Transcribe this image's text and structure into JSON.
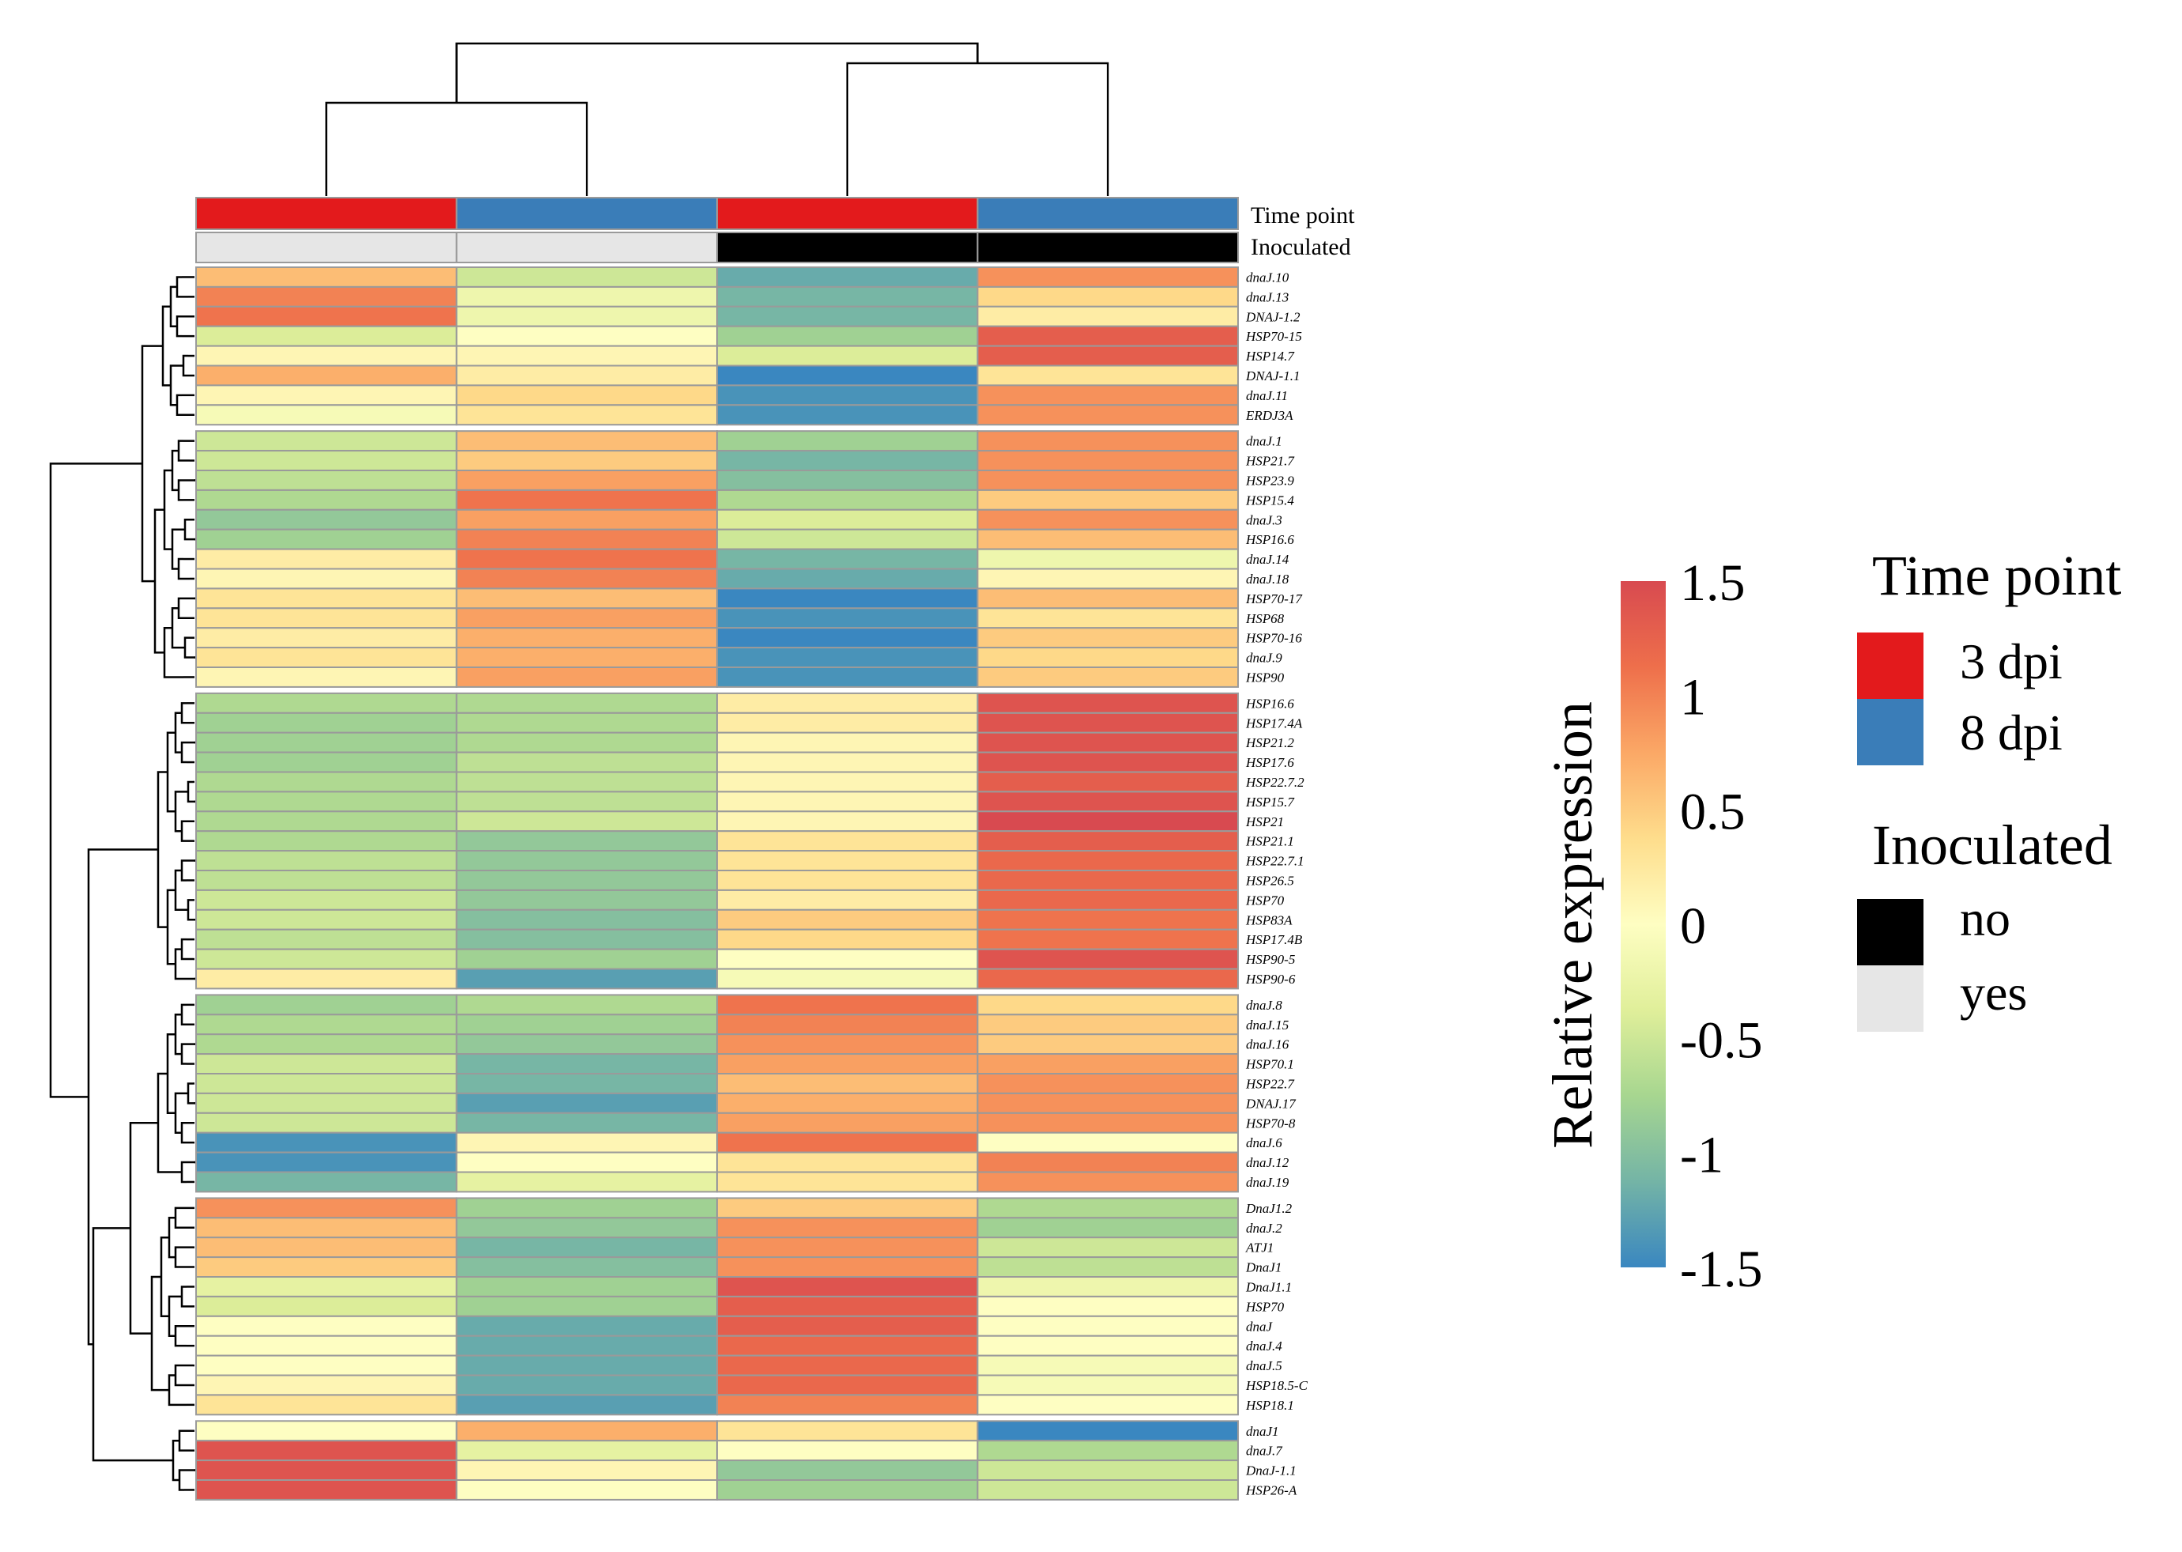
{
  "chart_data": {
    "type": "heatmap",
    "title": "",
    "colorbar": {
      "label": "Relative expression",
      "ticks": [
        "1.5",
        "1",
        "0.5",
        "0",
        "-0.5",
        "-1",
        "-1.5"
      ],
      "tick_values": [
        1.5,
        1,
        0.5,
        0,
        -0.5,
        -1,
        -1.5
      ],
      "range": [
        -1.5,
        1.5
      ]
    },
    "colormap": [
      "#3a87c0",
      "#74b4a6",
      "#a7d690",
      "#e0ef9a",
      "#fefec2",
      "#fedd8c",
      "#fba866",
      "#ee6f4b",
      "#d84a50"
    ],
    "columns": [
      {
        "time_point": "3 dpi",
        "inoculated": "yes"
      },
      {
        "time_point": "8 dpi",
        "inoculated": "yes"
      },
      {
        "time_point": "3 dpi",
        "inoculated": "no"
      },
      {
        "time_point": "8 dpi",
        "inoculated": "no"
      }
    ],
    "annotation_rows": [
      "Time point",
      "Inoculated"
    ],
    "legend": {
      "time_point": {
        "title": "Time point",
        "items": [
          {
            "label": "3 dpi",
            "color": "#e31a1c"
          },
          {
            "label": "8 dpi",
            "color": "#3a7db8"
          }
        ]
      },
      "inoculated": {
        "title": "Inoculated",
        "items": [
          {
            "label": "no",
            "color": "#000000"
          },
          {
            "label": "yes",
            "color": "#e6e6e6"
          }
        ]
      }
    },
    "row_groups": [
      [
        {
          "gene": "dnaJ.10",
          "values": [
            0.6,
            -0.5,
            -1.2,
            0.9
          ]
        },
        {
          "gene": "dnaJ.13",
          "values": [
            1.0,
            -0.2,
            -1.1,
            0.4
          ]
        },
        {
          "gene": "DNAJ-1.2",
          "values": [
            1.1,
            -0.2,
            -1.1,
            0.2
          ]
        },
        {
          "gene": "HSP70-15",
          "values": [
            -0.4,
            0.0,
            -0.8,
            1.3
          ]
        },
        {
          "gene": "HSP14.7",
          "values": [
            0.1,
            0.1,
            -0.4,
            1.3
          ]
        },
        {
          "gene": "DNAJ-1.1",
          "values": [
            0.7,
            0.2,
            -1.5,
            0.3
          ]
        },
        {
          "gene": "dnaJ.11",
          "values": [
            0.1,
            0.4,
            -1.4,
            0.9
          ]
        },
        {
          "gene": "ERDJ3A",
          "values": [
            -0.1,
            0.3,
            -1.4,
            0.9
          ]
        }
      ],
      [
        {
          "gene": "dnaJ.1",
          "values": [
            -0.5,
            0.6,
            -0.8,
            0.9
          ]
        },
        {
          "gene": "HSP21.7",
          "values": [
            -0.5,
            0.5,
            -1.1,
            0.9
          ]
        },
        {
          "gene": "HSP23.9",
          "values": [
            -0.6,
            0.8,
            -1.0,
            0.9
          ]
        },
        {
          "gene": "HSP15.4",
          "values": [
            -0.7,
            1.1,
            -0.7,
            0.5
          ]
        },
        {
          "gene": "dnaJ.3",
          "values": [
            -0.9,
            0.8,
            -0.4,
            0.9
          ]
        },
        {
          "gene": "HSP16.6",
          "values": [
            -0.8,
            1.0,
            -0.5,
            0.6
          ]
        },
        {
          "gene": "dnaJ.14",
          "values": [
            0.2,
            1.1,
            -1.1,
            -0.2
          ]
        },
        {
          "gene": "dnaJ.18",
          "values": [
            0.1,
            1.0,
            -1.2,
            0.1
          ]
        },
        {
          "gene": "HSP70-17",
          "values": [
            0.3,
            0.6,
            -1.5,
            0.6
          ]
        },
        {
          "gene": "HSP68",
          "values": [
            0.3,
            0.8,
            -1.4,
            0.3
          ]
        },
        {
          "gene": "HSP70-16",
          "values": [
            0.2,
            0.7,
            -1.5,
            0.5
          ]
        },
        {
          "gene": "dnaJ.9",
          "values": [
            0.3,
            0.7,
            -1.4,
            0.4
          ]
        },
        {
          "gene": "HSP90",
          "values": [
            0.1,
            0.8,
            -1.4,
            0.5
          ]
        }
      ],
      [
        {
          "gene": "HSP16.6",
          "values": [
            -0.7,
            -0.7,
            0.2,
            1.4
          ]
        },
        {
          "gene": "HSP17.4A",
          "values": [
            -0.8,
            -0.7,
            0.2,
            1.4
          ]
        },
        {
          "gene": "HSP21.2",
          "values": [
            -0.8,
            -0.7,
            0.1,
            1.4
          ]
        },
        {
          "gene": "HSP17.6",
          "values": [
            -0.8,
            -0.6,
            0.1,
            1.4
          ]
        },
        {
          "gene": "HSP22.7.2",
          "values": [
            -0.7,
            -0.6,
            0.1,
            1.3
          ]
        },
        {
          "gene": "HSP15.7",
          "values": [
            -0.7,
            -0.6,
            0.1,
            1.4
          ]
        },
        {
          "gene": "HSP21",
          "values": [
            -0.7,
            -0.5,
            0.1,
            1.5
          ]
        },
        {
          "gene": "HSP21.1",
          "values": [
            -0.7,
            -0.9,
            0.3,
            1.3
          ]
        },
        {
          "gene": "HSP22.7.1",
          "values": [
            -0.6,
            -0.9,
            0.3,
            1.2
          ]
        },
        {
          "gene": "HSP26.5",
          "values": [
            -0.6,
            -0.9,
            0.3,
            1.2
          ]
        },
        {
          "gene": "HSP70",
          "values": [
            -0.5,
            -0.9,
            0.2,
            1.2
          ]
        },
        {
          "gene": "HSP83A",
          "values": [
            -0.5,
            -1.0,
            0.5,
            1.1
          ]
        },
        {
          "gene": "HSP17.4B",
          "values": [
            -0.6,
            -1.0,
            0.4,
            1.1
          ]
        },
        {
          "gene": "HSP90-5",
          "values": [
            -0.5,
            -0.8,
            0.0,
            1.4
          ]
        },
        {
          "gene": "HSP90-6",
          "values": [
            0.2,
            -1.3,
            -0.1,
            1.2
          ]
        }
      ],
      [
        {
          "gene": "dnaJ.8",
          "values": [
            -0.8,
            -0.7,
            1.1,
            0.4
          ]
        },
        {
          "gene": "dnaJ.15",
          "values": [
            -0.7,
            -0.8,
            1.0,
            0.5
          ]
        },
        {
          "gene": "dnaJ.16",
          "values": [
            -0.7,
            -0.9,
            0.9,
            0.5
          ]
        },
        {
          "gene": "HSP70.1",
          "values": [
            -0.5,
            -1.1,
            0.8,
            0.8
          ]
        },
        {
          "gene": "HSP22.7",
          "values": [
            -0.5,
            -1.1,
            0.6,
            0.9
          ]
        },
        {
          "gene": "DNAJ.17",
          "values": [
            -0.5,
            -1.3,
            0.7,
            0.9
          ]
        },
        {
          "gene": "HSP70-8",
          "values": [
            -0.5,
            -1.1,
            0.8,
            0.9
          ]
        },
        {
          "gene": "dnaJ.6",
          "values": [
            -1.4,
            0.1,
            1.1,
            0.0
          ]
        },
        {
          "gene": "dnaJ.12",
          "values": [
            -1.4,
            0.0,
            0.3,
            1.0
          ]
        },
        {
          "gene": "dnaJ.19",
          "values": [
            -1.1,
            -0.3,
            0.3,
            0.9
          ]
        }
      ],
      [
        {
          "gene": "DnaJ1.2",
          "values": [
            0.9,
            -0.8,
            0.5,
            -0.7
          ]
        },
        {
          "gene": "dnaJ.2",
          "values": [
            0.6,
            -0.9,
            0.9,
            -0.8
          ]
        },
        {
          "gene": "ATJ1",
          "values": [
            0.6,
            -1.1,
            0.9,
            -0.5
          ]
        },
        {
          "gene": "DnaJ1",
          "values": [
            0.5,
            -1.0,
            0.9,
            -0.6
          ]
        },
        {
          "gene": "DnaJ1.1",
          "values": [
            -0.3,
            -0.8,
            1.4,
            -0.2
          ]
        },
        {
          "gene": "HSP70",
          "values": [
            -0.4,
            -0.8,
            1.3,
            0.0
          ]
        },
        {
          "gene": "dnaJ",
          "values": [
            0.0,
            -1.2,
            1.3,
            0.0
          ]
        },
        {
          "gene": "dnaJ.4",
          "values": [
            0.0,
            -1.2,
            1.2,
            0.0
          ]
        },
        {
          "gene": "dnaJ.5",
          "values": [
            0.0,
            -1.2,
            1.2,
            -0.1
          ]
        },
        {
          "gene": "HSP18.5-C",
          "values": [
            0.1,
            -1.2,
            1.2,
            -0.1
          ]
        },
        {
          "gene": "HSP18.1",
          "values": [
            0.3,
            -1.3,
            1.0,
            0.0
          ]
        }
      ],
      [
        {
          "gene": "dnaJ1",
          "values": [
            0.0,
            0.7,
            0.3,
            -1.5
          ]
        },
        {
          "gene": "dnaJ.7",
          "values": [
            1.4,
            -0.3,
            0.0,
            -0.7
          ]
        },
        {
          "gene": "DnaJ-1.1",
          "values": [
            1.4,
            0.1,
            -0.9,
            -0.5
          ]
        },
        {
          "gene": "HSP26-A",
          "values": [
            1.4,
            0.0,
            -0.8,
            -0.5
          ]
        }
      ]
    ]
  }
}
